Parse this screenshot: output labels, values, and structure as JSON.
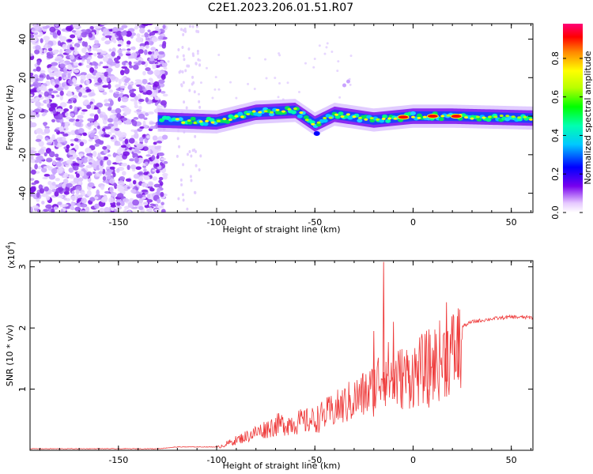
{
  "title": "C2E1.2023.206.01.51.R07",
  "chart_data": [
    {
      "type": "heatmap",
      "xlabel": "Height of straight line (km)",
      "ylabel": "Frequency (Hz)",
      "xlim": [
        -195,
        61
      ],
      "ylim": [
        -50,
        48
      ],
      "x_ticks": [
        -150,
        -100,
        -50,
        0,
        50
      ],
      "y_ticks": [
        -40,
        -20,
        0,
        20,
        40
      ],
      "colorbar": {
        "label": "Normalized spectral amplitude",
        "range": [
          0.0,
          0.98
        ],
        "ticks": [
          0.0,
          0.2,
          0.4,
          0.6,
          0.8
        ],
        "colormap": "rainbow (white-violet-blue-cyan-green-yellow-red-magenta)"
      },
      "signal_band": {
        "start_height_km": -130,
        "center_freq_hz": [
          {
            "x": -130,
            "y": -2
          },
          {
            "x": -100,
            "y": -3
          },
          {
            "x": -80,
            "y": 2
          },
          {
            "x": -60,
            "y": 3
          },
          {
            "x": -50,
            "y": -4
          },
          {
            "x": -40,
            "y": 1
          },
          {
            "x": -20,
            "y": -2
          },
          {
            "x": 0,
            "y": 0
          },
          {
            "x": 20,
            "y": 0
          },
          {
            "x": 61,
            "y": -1
          }
        ],
        "peak_amplitude_regions_km": [
          -5,
          10,
          22
        ]
      },
      "noise_region_km": [
        -195,
        -130
      ]
    },
    {
      "type": "line",
      "xlabel": "Height of straight line (km)",
      "ylabel": "SNR (10 * v/v)",
      "multiplier": "(x10",
      "multiplier_exp": "4",
      "multiplier_close": ")",
      "xlim": [
        -195,
        61
      ],
      "ylim": [
        0,
        3.1
      ],
      "x_ticks": [
        -150,
        -100,
        -50,
        0,
        50
      ],
      "y_ticks": [
        1,
        2,
        3
      ],
      "series": [
        {
          "color": "#ee3b3b",
          "envelope": [
            {
              "x": -195,
              "y": 0.02
            },
            {
              "x": -130,
              "y": 0.02
            },
            {
              "x": -120,
              "y": 0.05
            },
            {
              "x": -100,
              "y": 0.05
            },
            {
              "x": -90,
              "y": 0.2
            },
            {
              "x": -80,
              "y": 0.35
            },
            {
              "x": -70,
              "y": 0.5
            },
            {
              "x": -60,
              "y": 0.55
            },
            {
              "x": -50,
              "y": 0.6
            },
            {
              "x": -40,
              "y": 0.8
            },
            {
              "x": -30,
              "y": 1.0
            },
            {
              "x": -20,
              "y": 1.2
            },
            {
              "x": -15,
              "y": 1.6
            },
            {
              "x": -10,
              "y": 1.4
            },
            {
              "x": 0,
              "y": 1.5
            },
            {
              "x": 10,
              "y": 1.7
            },
            {
              "x": 20,
              "y": 1.95
            },
            {
              "x": 30,
              "y": 2.1
            },
            {
              "x": 40,
              "y": 2.15
            },
            {
              "x": 50,
              "y": 2.18
            },
            {
              "x": 61,
              "y": 2.17
            }
          ],
          "spikes": [
            {
              "x": -15,
              "y": 3.08
            },
            {
              "x": -20,
              "y": 1.95
            },
            {
              "x": -10,
              "y": 2.1
            },
            {
              "x": 17,
              "y": 2.42
            },
            {
              "x": 23,
              "y": 2.32
            },
            {
              "x": 8,
              "y": 0.7
            }
          ]
        }
      ]
    }
  ]
}
